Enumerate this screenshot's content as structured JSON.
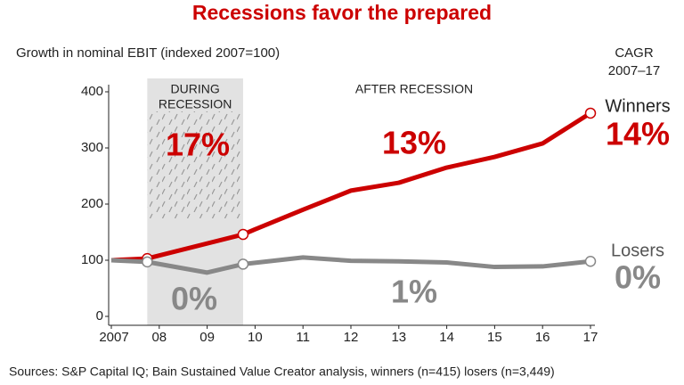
{
  "chart_data": {
    "type": "line",
    "title": "Recessions favor the prepared",
    "y_axis_title": "Growth in nominal EBIT (indexed 2007=100)",
    "source": "Sources: S&P Capital IQ; Bain Sustained Value Creator analysis, winners (n=415) losers (n=3,449)",
    "legend_header": [
      "CAGR",
      "2007–17"
    ],
    "shaded_range": [
      2007.75,
      2009.75
    ],
    "shaded_label": [
      "DURING",
      "RECESSION"
    ],
    "after_label": "AFTER RECESSION",
    "xlim": [
      2007,
      2017
    ],
    "xticks": [
      2007,
      {
        "value": 2008,
        "label": "08"
      },
      {
        "value": 2009,
        "label": "09"
      },
      {
        "value": 2010,
        "label": "10"
      },
      {
        "value": 2011,
        "label": "11"
      },
      {
        "value": 2012,
        "label": "12"
      },
      {
        "value": 2013,
        "label": "13"
      },
      {
        "value": 2014,
        "label": "14"
      },
      {
        "value": 2015,
        "label": "15"
      },
      {
        "value": 2016,
        "label": "16"
      },
      {
        "value": 2017,
        "label": "17"
      }
    ],
    "ylim": [
      0,
      400
    ],
    "yticks": [
      0,
      100,
      200,
      300,
      400
    ],
    "series": [
      {
        "name": "Winners",
        "color": "#cc0000",
        "cagr": "14%",
        "during": "17%",
        "after": "13%",
        "x": [
          2007,
          2007.75,
          2009.75,
          2010,
          2011,
          2012,
          2013,
          2014,
          2015,
          2016,
          2017
        ],
        "values": [
          100,
          103,
          146,
          155,
          190,
          224,
          238,
          265,
          284,
          308,
          362
        ]
      },
      {
        "name": "Losers",
        "color": "#888888",
        "cagr": "0%",
        "during": "0%",
        "after": "1%",
        "x": [
          2007,
          2007.75,
          2009,
          2009.75,
          2011,
          2012,
          2013,
          2014,
          2015,
          2016,
          2017
        ],
        "values": [
          100,
          97,
          78,
          93,
          105,
          99,
          98,
          96,
          88,
          89,
          98
        ]
      }
    ]
  }
}
